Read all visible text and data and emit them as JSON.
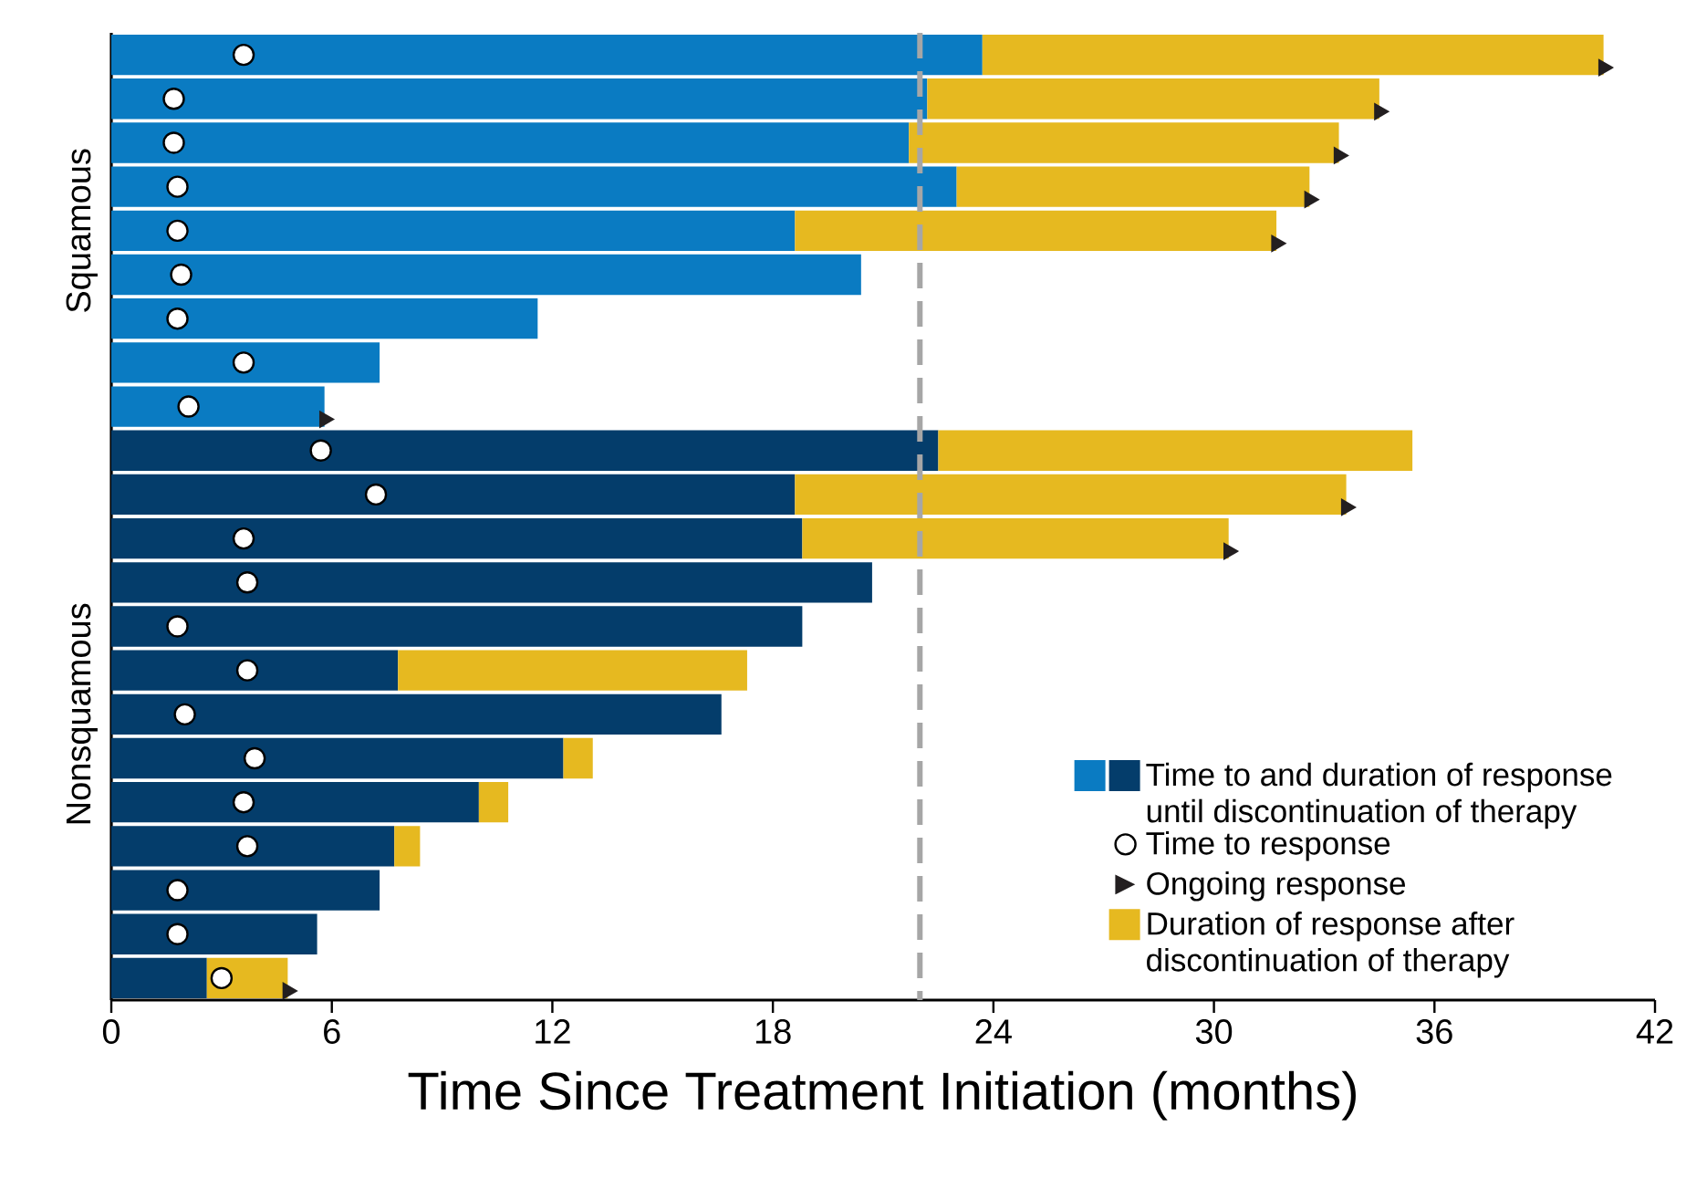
{
  "chart_data": {
    "type": "bar",
    "orientation": "horizontal",
    "stacked": true,
    "categories": [
      null,
      null,
      null,
      null,
      null,
      null,
      null,
      null,
      null,
      null,
      null,
      null,
      null,
      null,
      null,
      null,
      null,
      null,
      null,
      null,
      null,
      null
    ],
    "series": [
      {
        "name": "Time to and duration of response until discontinuation of therapy",
        "type": "bar",
        "colors": [
          "#0a7bc2",
          "#0a7bc2",
          "#0a7bc2",
          "#0a7bc2",
          "#0a7bc2",
          "#0a7bc2",
          "#0a7bc2",
          "#0a7bc2",
          "#0a7bc2",
          "#043d6b",
          "#043d6b",
          "#043d6b",
          "#043d6b",
          "#043d6b",
          "#043d6b",
          "#043d6b",
          "#043d6b",
          "#043d6b",
          "#043d6b",
          "#043d6b",
          "#043d6b",
          "#043d6b"
        ],
        "values": [
          23.7,
          22.2,
          21.7,
          23.0,
          18.6,
          20.4,
          11.6,
          7.3,
          5.8,
          22.5,
          18.6,
          18.8,
          20.7,
          18.8,
          7.8,
          16.6,
          12.3,
          10.0,
          7.7,
          7.3,
          5.6,
          2.6
        ]
      },
      {
        "name": "Time to response",
        "type": "scatter",
        "color": "#ffffff",
        "marker": "circle",
        "values": [
          3.6,
          1.7,
          1.7,
          1.8,
          1.8,
          1.9,
          1.8,
          3.6,
          2.1,
          5.7,
          7.2,
          3.6,
          3.7,
          1.8,
          3.7,
          2.0,
          3.9,
          3.6,
          3.7,
          1.8,
          1.8,
          3.0
        ]
      },
      {
        "name": "Ongoing response",
        "type": "scatter",
        "color": "#231f20",
        "marker": "triangle",
        "values": [
          40.6,
          34.5,
          33.4,
          32.6,
          31.7,
          null,
          null,
          null,
          5.8,
          null,
          33.6,
          30.4,
          null,
          null,
          null,
          null,
          null,
          null,
          null,
          null,
          null,
          4.8
        ]
      },
      {
        "name": "Duration of response after discontinuation of therapy",
        "type": "bar",
        "color": "#e6b920",
        "values": [
          16.9,
          12.3,
          11.7,
          9.6,
          13.1,
          null,
          null,
          null,
          null,
          12.9,
          15.0,
          11.6,
          null,
          null,
          9.5,
          null,
          0.8,
          0.8,
          0.7,
          null,
          null,
          2.2
        ]
      }
    ],
    "xlabel": "Time Since Treatment Initiation (months)",
    "xlim": [
      0,
      42
    ],
    "xticks": [
      0,
      6,
      12,
      18,
      24,
      30,
      36,
      42
    ],
    "ref_lines": [
      {
        "axis": "x",
        "value": 22,
        "color": "#a6a6a6",
        "line_style": "dashed"
      }
    ],
    "annotations": [
      "Squamous",
      "Nonsquamous"
    ],
    "legend": "bottom right"
  }
}
